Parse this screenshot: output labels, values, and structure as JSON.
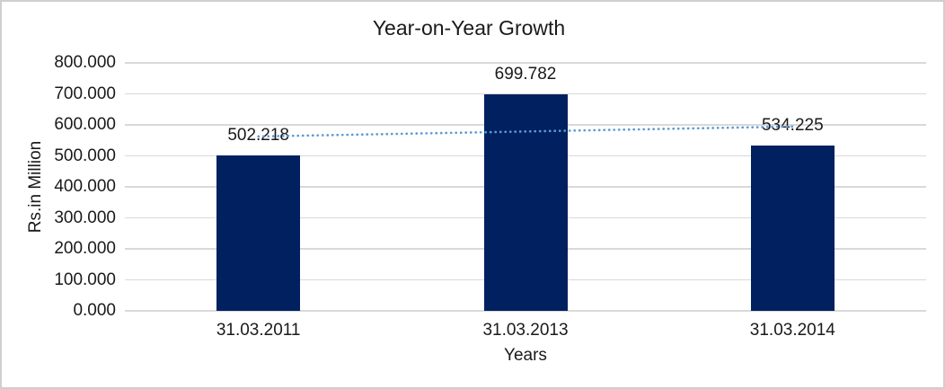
{
  "chart_data": {
    "type": "bar",
    "title": "Year-on-Year Growth",
    "xlabel": "Years",
    "ylabel": "Rs.in Million",
    "categories": [
      "31.03.2011",
      "31.03.2013",
      "31.03.2014"
    ],
    "values": [
      502.218,
      699.782,
      534.225
    ],
    "data_labels": [
      "502.218",
      "699.782",
      "534.225"
    ],
    "ylim": [
      0,
      800
    ],
    "ytick_step": 100,
    "ytick_labels": [
      "0.000",
      "100.000",
      "200.000",
      "300.000",
      "400.000",
      "500.000",
      "600.000",
      "700.000",
      "800.000"
    ],
    "grid": true,
    "legend": "none",
    "trendline": {
      "type": "linear",
      "style": "dotted"
    },
    "colors": {
      "bar": "#002060",
      "trendline": "#5b9bd5",
      "gridline": "#d9d9d9",
      "text": "#1a1a1a",
      "frame_border": "#cfcfcf",
      "background": "#ffffff"
    }
  }
}
